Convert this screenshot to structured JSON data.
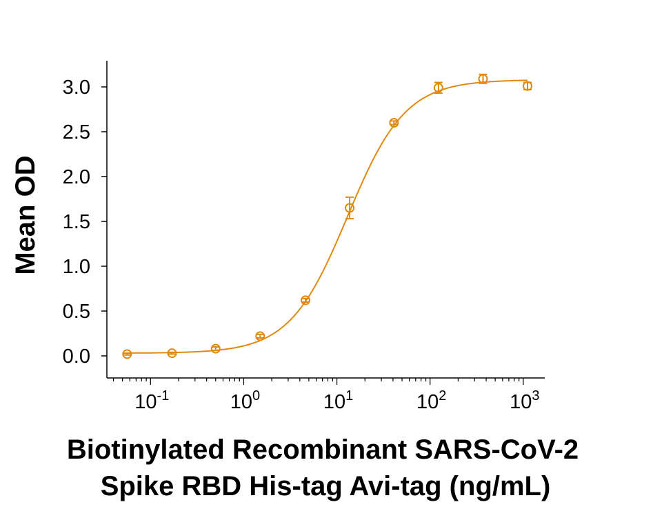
{
  "chart_data": {
    "type": "scatter",
    "xlabel": [
      "Biotinylated Recombinant SARS-CoV-2",
      "Spike RBD His-tag Avi-tag (ng/mL)"
    ],
    "ylabel": "Mean OD",
    "x_scale": "log",
    "xlim": [
      0.034,
      1700
    ],
    "ylim": [
      -0.1,
      3.3
    ],
    "x_ticks": [
      {
        "base": "10",
        "exp": "-1",
        "value": 0.1
      },
      {
        "base": "10",
        "exp": "0",
        "value": 1
      },
      {
        "base": "10",
        "exp": "1",
        "value": 10
      },
      {
        "base": "10",
        "exp": "2",
        "value": 100
      },
      {
        "base": "10",
        "exp": "3",
        "value": 1000
      }
    ],
    "y_ticks": [
      "0.0",
      "0.5",
      "1.0",
      "1.5",
      "2.0",
      "2.5",
      "3.0"
    ],
    "color": "#E0890F",
    "grid": false,
    "series": [
      {
        "x": [
          0.056,
          0.17,
          0.5,
          1.5,
          4.6,
          13.7,
          41,
          123,
          370,
          1111
        ],
        "y": [
          0.02,
          0.03,
          0.08,
          0.22,
          0.62,
          1.65,
          2.6,
          2.99,
          3.09,
          3.01
        ],
        "error": [
          0.01,
          0.01,
          0.02,
          0.02,
          0.02,
          0.12,
          0.02,
          0.06,
          0.05,
          0.04
        ]
      }
    ],
    "fit": {
      "type": "4PL",
      "bottom": 0.03,
      "top": 3.08,
      "ec50": 13,
      "hill": 1.4
    }
  }
}
